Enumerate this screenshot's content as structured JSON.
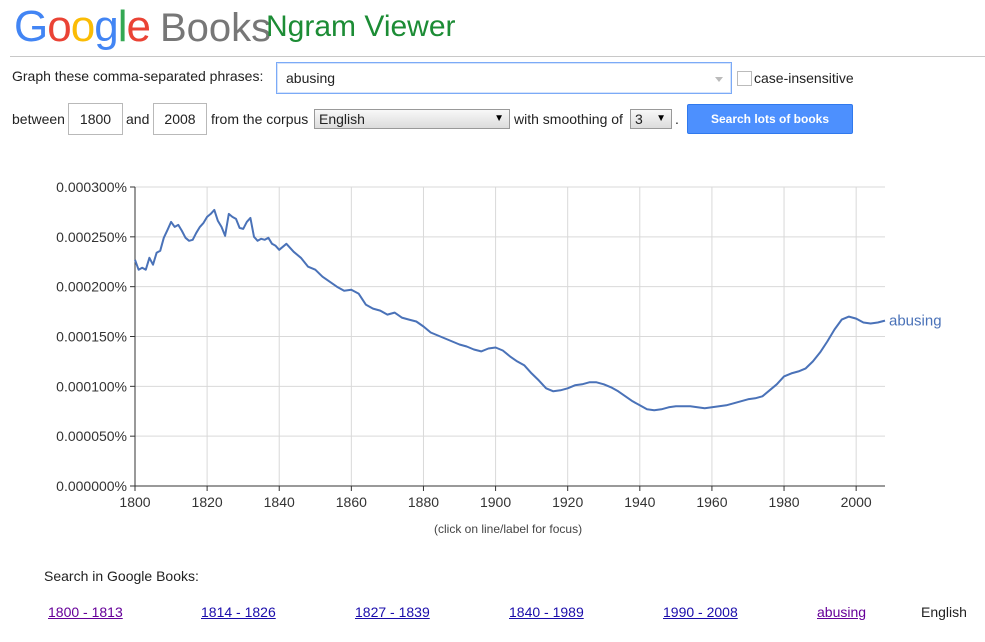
{
  "header": {
    "logo_text": "Google",
    "books_text": "Books",
    "app_title": "Ngram Viewer"
  },
  "form": {
    "phrases_label": "Graph these comma-separated phrases:",
    "phrase_value": "abusing",
    "case_label": "case-insensitive",
    "case_checked": false,
    "between_label": "between",
    "year_start": "1800",
    "and_label": "and",
    "year_end": "2008",
    "corpus_label": "from the corpus",
    "corpus_value": "English",
    "smoothing_label": "with smoothing of",
    "smoothing_value": "3",
    "period": ".",
    "search_button": "Search lots of books"
  },
  "chart_note": "(click on line/label for focus)",
  "search_in": {
    "label": "Search in Google Books:",
    "links": [
      "1800 - 1813",
      "1814 - 1826",
      "1827 - 1839",
      "1840 - 1989",
      "1990 - 2008"
    ],
    "phrase_link": "abusing",
    "corpus_text": "English"
  },
  "colors": {
    "line": "#4a72b8",
    "grid": "#d9d9d9",
    "axis": "#333333",
    "link": "#1a0dab",
    "visited": "#660099"
  },
  "chart_data": {
    "type": "line",
    "x_range": [
      1800,
      2008
    ],
    "y_range": [
      0,
      0.0003
    ],
    "x_ticks": [
      "1800",
      "1820",
      "1840",
      "1860",
      "1880",
      "1900",
      "1920",
      "1940",
      "1960",
      "1980",
      "2000"
    ],
    "y_ticks": [
      "0.000000%",
      "0.000050%",
      "0.000100%",
      "0.000150%",
      "0.000200%",
      "0.000250%",
      "0.000300%"
    ],
    "grid": true,
    "series": [
      {
        "name": "abusing",
        "points": [
          [
            1800,
            0.000227
          ],
          [
            1801,
            0.000217
          ],
          [
            1802,
            0.000219
          ],
          [
            1803,
            0.000217
          ],
          [
            1804,
            0.000229
          ],
          [
            1805,
            0.000222
          ],
          [
            1806,
            0.000234
          ],
          [
            1807,
            0.000236
          ],
          [
            1808,
            0.000249
          ],
          [
            1809,
            0.000257
          ],
          [
            1810,
            0.000265
          ],
          [
            1811,
            0.00026
          ],
          [
            1812,
            0.000262
          ],
          [
            1813,
            0.000256
          ],
          [
            1814,
            0.000249
          ],
          [
            1815,
            0.000246
          ],
          [
            1816,
            0.000247
          ],
          [
            1817,
            0.000254
          ],
          [
            1818,
            0.00026
          ],
          [
            1819,
            0.000264
          ],
          [
            1820,
            0.00027
          ],
          [
            1821,
            0.000273
          ],
          [
            1822,
            0.000277
          ],
          [
            1823,
            0.000266
          ],
          [
            1824,
            0.00026
          ],
          [
            1825,
            0.000251
          ],
          [
            1826,
            0.000273
          ],
          [
            1827,
            0.00027
          ],
          [
            1828,
            0.000268
          ],
          [
            1829,
            0.000259
          ],
          [
            1830,
            0.000258
          ],
          [
            1831,
            0.000265
          ],
          [
            1832,
            0.000269
          ],
          [
            1833,
            0.00025
          ],
          [
            1834,
            0.000246
          ],
          [
            1835,
            0.000248
          ],
          [
            1836,
            0.000247
          ],
          [
            1837,
            0.000249
          ],
          [
            1838,
            0.000243
          ],
          [
            1839,
            0.000241
          ],
          [
            1840,
            0.000237
          ],
          [
            1842,
            0.000243
          ],
          [
            1844,
            0.000235
          ],
          [
            1846,
            0.000229
          ],
          [
            1848,
            0.00022
          ],
          [
            1850,
            0.000217
          ],
          [
            1852,
            0.00021
          ],
          [
            1854,
            0.000205
          ],
          [
            1856,
            0.0002
          ],
          [
            1858,
            0.000196
          ],
          [
            1860,
            0.000197
          ],
          [
            1862,
            0.000193
          ],
          [
            1864,
            0.000182
          ],
          [
            1866,
            0.000178
          ],
          [
            1868,
            0.000176
          ],
          [
            1870,
            0.000172
          ],
          [
            1872,
            0.000174
          ],
          [
            1874,
            0.000169
          ],
          [
            1876,
            0.000167
          ],
          [
            1878,
            0.000165
          ],
          [
            1880,
            0.00016
          ],
          [
            1882,
            0.000154
          ],
          [
            1884,
            0.000151
          ],
          [
            1886,
            0.000148
          ],
          [
            1888,
            0.000145
          ],
          [
            1890,
            0.000142
          ],
          [
            1892,
            0.00014
          ],
          [
            1894,
            0.000137
          ],
          [
            1896,
            0.000135
          ],
          [
            1898,
            0.000138
          ],
          [
            1900,
            0.000139
          ],
          [
            1902,
            0.000136
          ],
          [
            1904,
            0.00013
          ],
          [
            1906,
            0.000125
          ],
          [
            1908,
            0.000121
          ],
          [
            1910,
            0.000113
          ],
          [
            1912,
            0.000106
          ],
          [
            1914,
            9.8e-05
          ],
          [
            1916,
            9.5e-05
          ],
          [
            1918,
            9.6e-05
          ],
          [
            1920,
            9.8e-05
          ],
          [
            1922,
            0.000101
          ],
          [
            1924,
            0.000102
          ],
          [
            1926,
            0.000104
          ],
          [
            1928,
            0.000104
          ],
          [
            1930,
            0.000102
          ],
          [
            1932,
            9.9e-05
          ],
          [
            1934,
            9.5e-05
          ],
          [
            1936,
            9e-05
          ],
          [
            1938,
            8.5e-05
          ],
          [
            1940,
            8.1e-05
          ],
          [
            1942,
            7.7e-05
          ],
          [
            1944,
            7.6e-05
          ],
          [
            1946,
            7.7e-05
          ],
          [
            1948,
            7.9e-05
          ],
          [
            1950,
            8e-05
          ],
          [
            1952,
            8e-05
          ],
          [
            1954,
            8e-05
          ],
          [
            1956,
            7.9e-05
          ],
          [
            1958,
            7.8e-05
          ],
          [
            1960,
            7.9e-05
          ],
          [
            1962,
            8e-05
          ],
          [
            1964,
            8.1e-05
          ],
          [
            1966,
            8.3e-05
          ],
          [
            1968,
            8.5e-05
          ],
          [
            1970,
            8.7e-05
          ],
          [
            1972,
            8.8e-05
          ],
          [
            1974,
            9e-05
          ],
          [
            1976,
            9.6e-05
          ],
          [
            1978,
            0.000102
          ],
          [
            1980,
            0.00011
          ],
          [
            1982,
            0.000113
          ],
          [
            1984,
            0.000115
          ],
          [
            1986,
            0.000118
          ],
          [
            1988,
            0.000125
          ],
          [
            1990,
            0.000134
          ],
          [
            1992,
            0.000145
          ],
          [
            1994,
            0.000157
          ],
          [
            1996,
            0.000167
          ],
          [
            1998,
            0.00017
          ],
          [
            2000,
            0.000168
          ],
          [
            2002,
            0.000164
          ],
          [
            2004,
            0.000163
          ],
          [
            2006,
            0.000164
          ],
          [
            2008,
            0.000166
          ]
        ]
      }
    ]
  }
}
